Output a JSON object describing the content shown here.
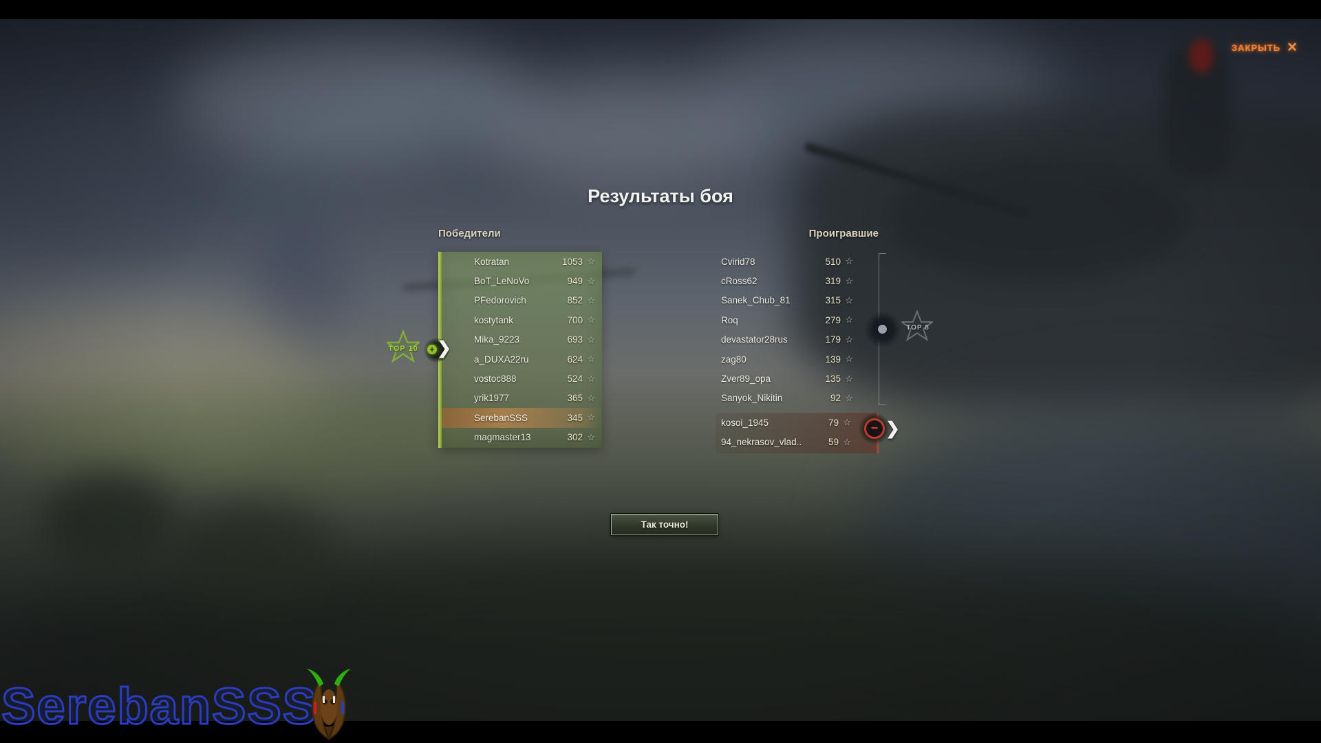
{
  "window": {
    "title": "Результаты боя",
    "close_label": "ЗАКРЫТЬ"
  },
  "icons": {
    "star": "☆",
    "close": "✕",
    "chevron": "❯",
    "plus": "+",
    "minus": "−"
  },
  "winners": {
    "header": "Победители",
    "badge_label": "TOP 10",
    "highlighted_player": "SerebanSSS",
    "rows": [
      {
        "name": "Kotratan",
        "score": 1053
      },
      {
        "name": "BoT_LeNoVo",
        "score": 949
      },
      {
        "name": "PFedorovich",
        "score": 852
      },
      {
        "name": "kostytank",
        "score": 700
      },
      {
        "name": "Mika_9223",
        "score": 693
      },
      {
        "name": "a_DUXA22ru",
        "score": 624
      },
      {
        "name": "vostoc888",
        "score": 524
      },
      {
        "name": "yrik1977",
        "score": 365
      },
      {
        "name": "SerebanSSS",
        "score": 345
      },
      {
        "name": "magmaster13",
        "score": 302
      }
    ]
  },
  "losers": {
    "header": "Проигравшие",
    "badge_label": "TOP 8",
    "rows": [
      {
        "name": "Cvirid78",
        "score": 510
      },
      {
        "name": "cRoss62",
        "score": 319
      },
      {
        "name": "Sanek_Chub_81",
        "score": 315
      },
      {
        "name": "Roq",
        "score": 279
      },
      {
        "name": "devastator28rus",
        "score": 179
      },
      {
        "name": "zag80",
        "score": 139
      },
      {
        "name": "Zver89_opa",
        "score": 135
      },
      {
        "name": "Sanyok_Nikitin",
        "score": 92
      }
    ],
    "below_top": [
      {
        "name": "kosoi_1945",
        "score": 79
      },
      {
        "name": "94_nekrasov_vlad..",
        "score": 59
      }
    ]
  },
  "confirm_button": {
    "label": "Так точно!"
  },
  "watermark": {
    "text": "SerebanSSS"
  },
  "colors": {
    "accent_green": "#8fbe2e",
    "highlight_orange": "#b0804b",
    "close_orange": "#ef7f35",
    "negative_red": "#c03a30",
    "watermark_blue": "#2c3cc0"
  }
}
